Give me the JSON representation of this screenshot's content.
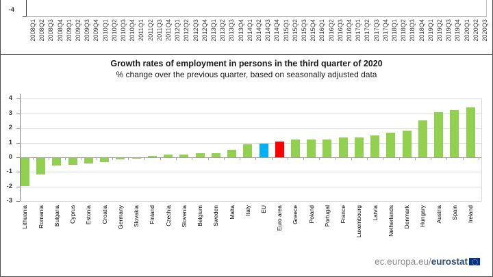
{
  "top_chart": {
    "y_axis_tick_label": "-4",
    "x_labels": [
      "2008Q1",
      "2008Q2",
      "2008Q3",
      "2008Q4",
      "2009Q1",
      "2009Q2",
      "2009Q3",
      "2009Q4",
      "2010Q1",
      "2010Q2",
      "2010Q3",
      "2010Q4",
      "2011Q1",
      "2011Q2",
      "2011Q3",
      "2011Q4",
      "2012Q1",
      "2012Q2",
      "2012Q3",
      "2012Q4",
      "2013Q1",
      "2013Q2",
      "2013Q3",
      "2013Q4",
      "2014Q1",
      "2014Q2",
      "2014Q3",
      "2014Q4",
      "2015Q1",
      "2015Q2",
      "2015Q3",
      "2015Q4",
      "2016Q1",
      "2016Q2",
      "2016Q3",
      "2016Q4",
      "2017Q1",
      "2017Q2",
      "2017Q3",
      "2017Q4",
      "2018Q1",
      "2018Q2",
      "2018Q3",
      "2018Q4",
      "2019Q1",
      "2019Q2",
      "2019Q3",
      "2019Q4",
      "2020Q1",
      "2020Q2",
      "2020Q3"
    ]
  },
  "chart_data": {
    "type": "bar",
    "title": "Growth rates of employment in persons  in the third quarter of 2020",
    "subtitle": "% change over the previous quarter, based on seasonally adjusted data",
    "categories": [
      "Lithuania",
      "Romania",
      "Bulgaria",
      "Cyprus",
      "Estonia",
      "Croatia",
      "Germany",
      "Slovakia",
      "Finland",
      "Czechia",
      "Slovenia",
      "Belgium",
      "Sweden",
      "Malta",
      "Italy",
      "EU",
      "Euro area",
      "Greece",
      "Poland",
      "Portugal",
      "France",
      "Luxembourg",
      "Latvia",
      "Netherlands",
      "Denmark",
      "Hungary",
      "Austria",
      "Spain",
      "Ireland"
    ],
    "values": [
      -1.9,
      -1.1,
      -0.5,
      -0.45,
      -0.35,
      -0.3,
      -0.1,
      -0.05,
      0.1,
      0.2,
      0.2,
      0.3,
      0.3,
      0.5,
      0.9,
      0.95,
      1.05,
      1.2,
      1.2,
      1.2,
      1.35,
      1.35,
      1.5,
      1.7,
      1.8,
      2.5,
      3.1,
      3.2,
      3.4
    ],
    "default_bar_color": "#92D050",
    "highlight_colors": {
      "EU": "#00B0F0",
      "Euro area": "#FE0000"
    },
    "ylim": [
      -3,
      4
    ],
    "y_ticks": [
      4,
      3,
      2,
      1,
      0,
      -1,
      -2,
      -3
    ],
    "grid": true,
    "legend": "none",
    "xlabel": "",
    "ylabel": ""
  },
  "footer": {
    "url_prefix": "ec.europa.eu/",
    "url_bold": "eurostat"
  }
}
